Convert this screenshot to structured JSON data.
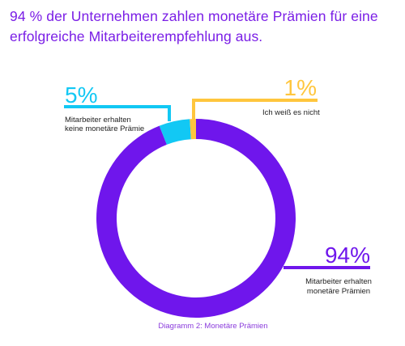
{
  "headline": {
    "line1": "94 % der Unternehmen zahlen monetäre Prämien für eine",
    "line2": "erfolgreiche Mitarbeiterempfehlung aus."
  },
  "chart_data": {
    "type": "pie",
    "variant": "donut",
    "caption": "Diagramm 2: Monetäre Prämien",
    "series": [
      {
        "value": 94,
        "percent_label": "94%",
        "label_lines": [
          "Mitarbeiter erhalten",
          "monetäre Prämien"
        ],
        "color": "#6f16ec"
      },
      {
        "value": 5,
        "percent_label": "5%",
        "label_lines": [
          "Mitarbeiter erhalten",
          "keine monetäre Prämie"
        ],
        "color": "#12c8f4"
      },
      {
        "value": 1,
        "percent_label": "1%",
        "label_lines": [
          "Ich weiß es nicht"
        ],
        "color": "#ffc63d"
      }
    ]
  },
  "colors": {
    "headline": "#7a1ee6",
    "caption": "#8a3bdc"
  }
}
